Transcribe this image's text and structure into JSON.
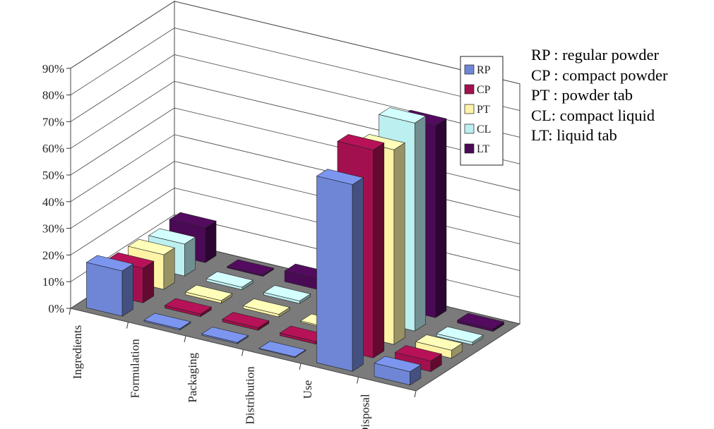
{
  "chart_data": {
    "type": "bar",
    "categories": [
      "Ingredients",
      "Formulation",
      "Packaging",
      "Distribution",
      "Use",
      "Disposal"
    ],
    "series": [
      {
        "name": "RP",
        "color": "#6F86D6",
        "values": [
          17,
          0.5,
          0.5,
          0.3,
          70,
          5
        ]
      },
      {
        "name": "CP",
        "color": "#A3104F",
        "values": [
          13,
          1,
          1,
          1,
          78,
          4
        ]
      },
      {
        "name": "PT",
        "color": "#FFF3A6",
        "values": [
          13,
          1,
          1,
          0.5,
          73,
          3
        ]
      },
      {
        "name": "CL",
        "color": "#BCEFF0",
        "values": [
          12,
          1,
          1,
          1,
          78,
          1
        ]
      },
      {
        "name": "LT",
        "color": "#4A0A55",
        "values": [
          13,
          0.5,
          4,
          0.5,
          72,
          1
        ]
      }
    ],
    "y_ticks": [
      "0%",
      "10%",
      "20%",
      "30%",
      "40%",
      "50%",
      "60%",
      "70%",
      "80%",
      "90%"
    ],
    "ylim": [
      0,
      90
    ],
    "legend": "right",
    "grid": true
  },
  "abbreviations": [
    "RP : regular powder",
    "CP : compact powder",
    "PT : powder tab",
    "CL: compact liquid",
    "LT: liquid tab"
  ]
}
